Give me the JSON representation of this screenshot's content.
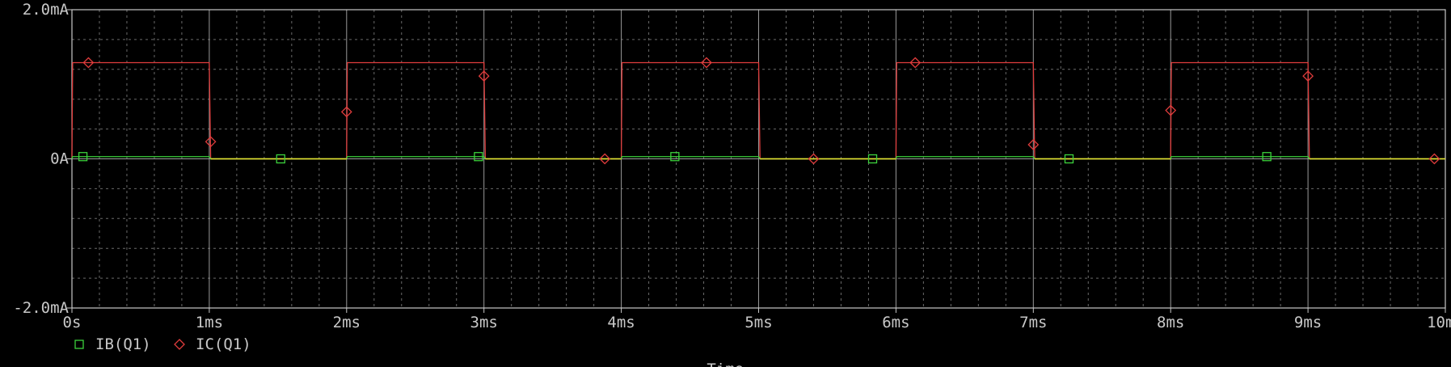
{
  "chart_data": {
    "type": "line",
    "title": "",
    "xlabel": "Time",
    "ylabel": "",
    "xlim": [
      0,
      10
    ],
    "ylim": [
      -2.0,
      2.0
    ],
    "x_unit": "ms",
    "y_unit": "mA",
    "x_ticks": [
      0,
      1,
      2,
      3,
      4,
      5,
      6,
      7,
      8,
      9,
      10
    ],
    "x_tick_labels": [
      "0s",
      "1ms",
      "2ms",
      "3ms",
      "4ms",
      "5ms",
      "6ms",
      "7ms",
      "8ms",
      "9ms",
      "10ms"
    ],
    "y_ticks": [
      -2.0,
      0,
      2.0
    ],
    "y_tick_labels": [
      "-2.0mA",
      "0A",
      "2.0mA"
    ],
    "grid": true,
    "legend_position": "bottom-left",
    "series": [
      {
        "name": "IB(Q1)",
        "color": "#3cd23c",
        "marker": "square",
        "x": [
          0,
          0.005,
          1.0,
          1.01,
          2.0,
          2.005,
          3.0,
          3.01,
          4.0,
          4.005,
          5.0,
          5.01,
          6.0,
          6.005,
          7.0,
          7.01,
          8.0,
          8.005,
          9.0,
          9.01,
          10.0
        ],
        "y": [
          0,
          0.03,
          0.03,
          0,
          0,
          0.03,
          0.03,
          0,
          0,
          0.03,
          0.03,
          0,
          0,
          0.03,
          0.03,
          0,
          0,
          0.03,
          0.03,
          0,
          0
        ],
        "marker_x": [
          0.08,
          1.52,
          2.96,
          4.39,
          5.83,
          7.26,
          8.7
        ],
        "marker_y": [
          0.03,
          0,
          0.03,
          0.03,
          0,
          0,
          0.03
        ]
      },
      {
        "name": "IC(Q1)",
        "color": "#e03c3c",
        "marker": "diamond",
        "x": [
          0,
          0.005,
          1.0,
          1.01,
          2.0,
          2.005,
          3.0,
          3.01,
          4.0,
          4.005,
          5.0,
          5.01,
          6.0,
          6.005,
          7.0,
          7.01,
          8.0,
          8.005,
          9.0,
          9.01,
          10.0
        ],
        "y": [
          0,
          1.29,
          1.29,
          0,
          0,
          1.29,
          1.29,
          0,
          0,
          1.29,
          1.29,
          0,
          0,
          1.29,
          1.29,
          0,
          0,
          1.29,
          1.29,
          0,
          0
        ],
        "marker_x": [
          0.12,
          1.01,
          2.0,
          3.0,
          3.88,
          4.62,
          5.4,
          6.14,
          7.0,
          8.0,
          9.0,
          9.92
        ],
        "marker_y": [
          1.29,
          0.23,
          0.63,
          1.11,
          0,
          1.29,
          0,
          1.29,
          0.19,
          0.65,
          1.11,
          0
        ]
      }
    ],
    "overlap_color": "#e6e632"
  }
}
